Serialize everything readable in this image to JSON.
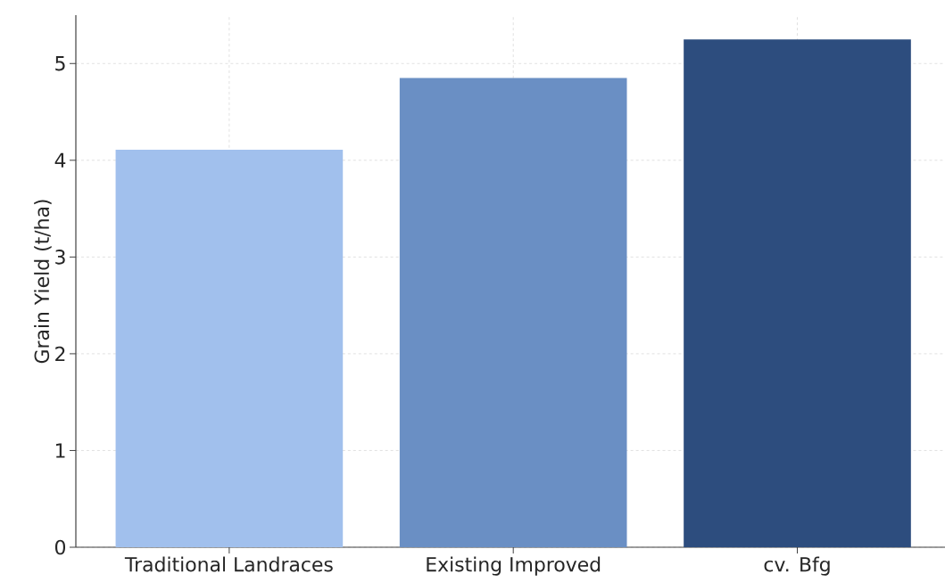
{
  "chart_data": {
    "type": "bar",
    "ylabel": "Grain Yield (t/ha)",
    "categories": [
      "Traditional Landraces",
      "Existing Improved",
      "cv. Bfg"
    ],
    "values": [
      4.11,
      4.85,
      5.25
    ],
    "colors": [
      "#a1c0ed",
      "#6a8fc4",
      "#2d4d7e"
    ],
    "ylim": [
      0,
      5.5
    ],
    "yticks": [
      0,
      1,
      2,
      3,
      4,
      5
    ],
    "grid": true
  }
}
